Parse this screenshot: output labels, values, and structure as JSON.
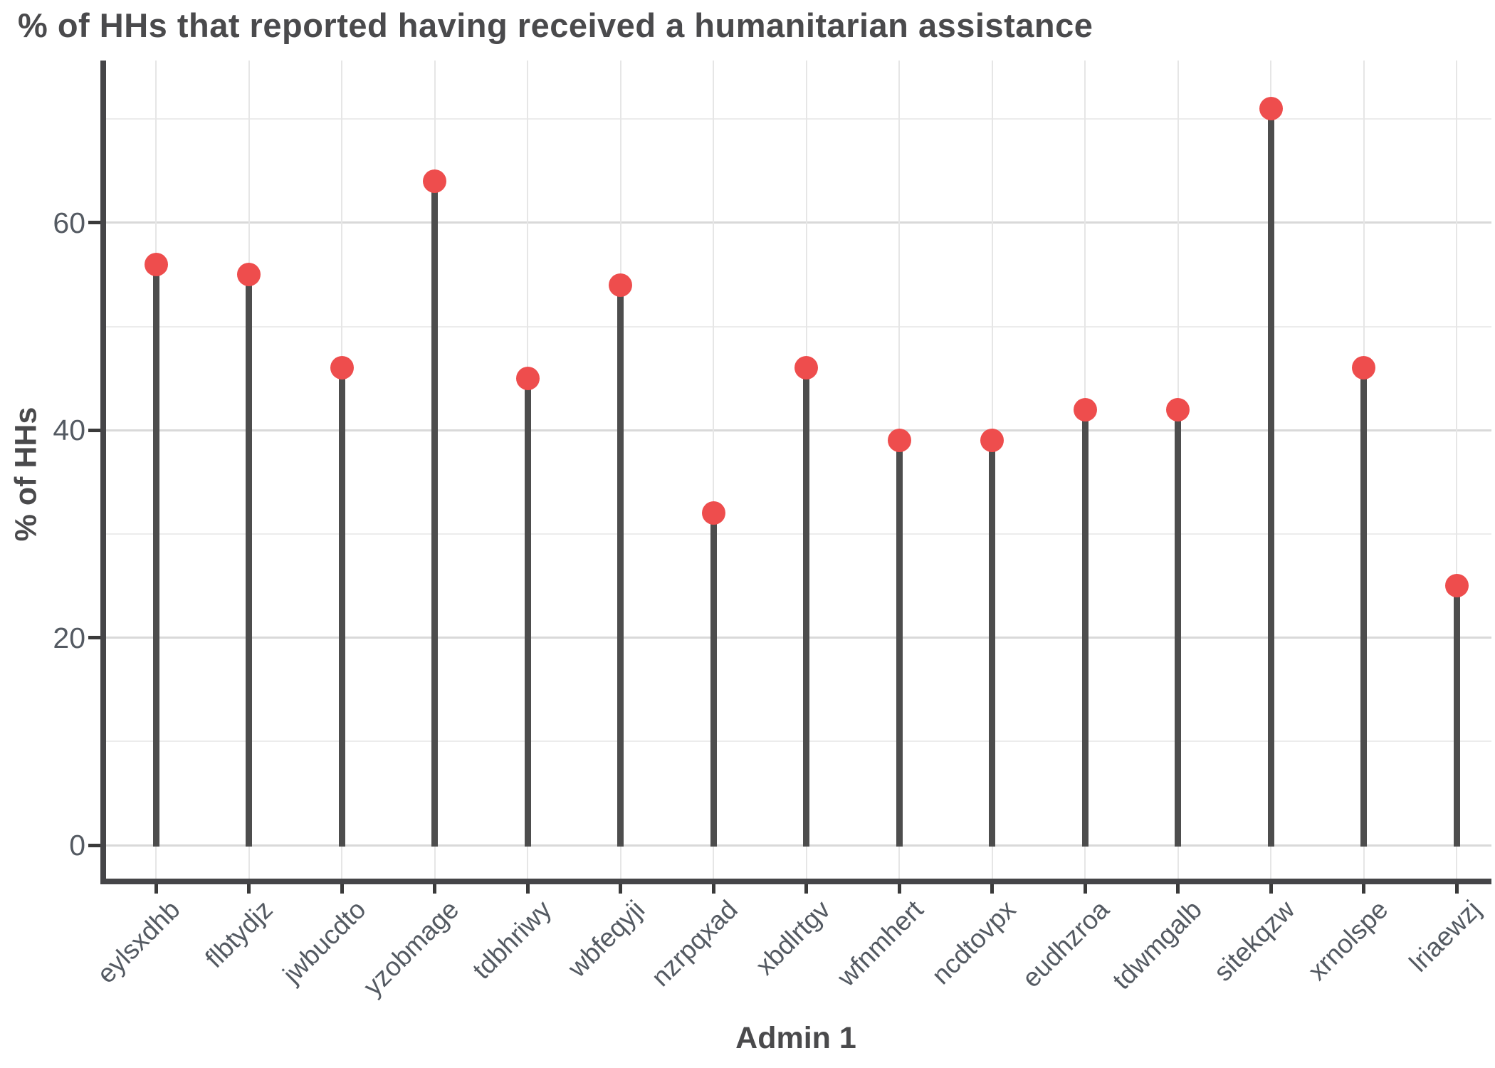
{
  "chart_data": {
    "type": "bar",
    "variant": "lollipop",
    "title": "% of HHs that reported having received a humanitarian assistance",
    "xlabel": "Admin 1",
    "ylabel": "% of HHs",
    "categories": [
      "eylsxdhb",
      "flbtydjz",
      "jwbucdto",
      "yzobmage",
      "tdbhriwy",
      "wbfeqyji",
      "nzrpqxad",
      "xbdlrtgv",
      "wfnmhert",
      "ncdtovpx",
      "eudhzroa",
      "tdwmgalb",
      "sitekqzw",
      "xrnolspe",
      "lriaewzj"
    ],
    "values": [
      56,
      55,
      46,
      64,
      45,
      54,
      32,
      46,
      39,
      39,
      42,
      42,
      71,
      46,
      25
    ],
    "ylim": [
      0,
      76
    ],
    "yticks": [
      0,
      20,
      40,
      60
    ],
    "yticks_minor": [
      10,
      30,
      50,
      70
    ],
    "grid": true,
    "legend": "none",
    "colors": {
      "point": "#ee4d4d",
      "stem": "#4d4d4d",
      "axis": "#454548",
      "tick": "#3a3a3a",
      "grid_major": "#d9d9d9",
      "grid_minor": "#ececec",
      "grid_vertical": "#e6e6e6",
      "title_text": "#4a4a4c",
      "tick_text": "#545a62"
    }
  }
}
